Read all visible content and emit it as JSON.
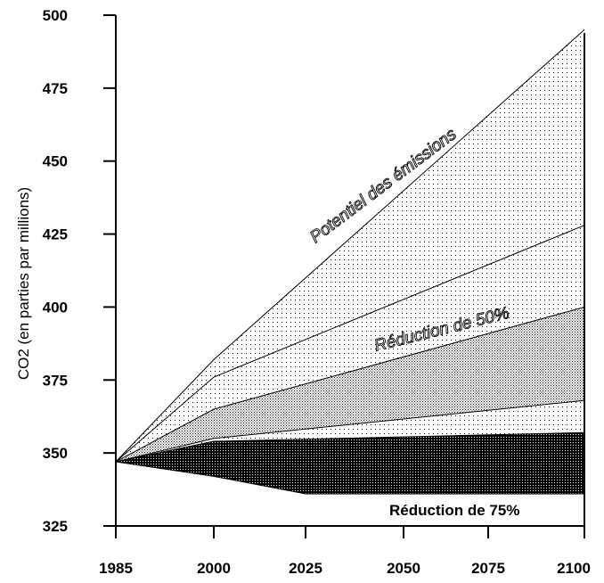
{
  "chart_data": {
    "type": "area",
    "ylabel": "CO2 (en parties par millions)",
    "xlabel": "",
    "ylim": [
      325,
      500
    ],
    "y_ticks": [
      325,
      350,
      375,
      400,
      425,
      450,
      475,
      500
    ],
    "x_tick_labels": [
      "1985",
      "2000",
      "2025",
      "2050",
      "2075",
      "2100"
    ],
    "grid": false,
    "legend": "none",
    "bands": [
      {
        "label": "Potentiel des émissions",
        "pattern": "light-dots",
        "upper": [
          [
            "1985",
            347
          ],
          [
            "2000",
            382
          ],
          [
            "2100",
            495
          ]
        ],
        "lower": [
          [
            "1985",
            347
          ],
          [
            "2000",
            376
          ],
          [
            "2100",
            428
          ]
        ]
      },
      {
        "label": "",
        "pattern": "light-dots",
        "upper": [
          [
            "1985",
            347
          ],
          [
            "2000",
            376
          ],
          [
            "2100",
            428
          ]
        ],
        "lower": [
          [
            "1985",
            347
          ],
          [
            "2000",
            365
          ],
          [
            "2100",
            400
          ]
        ]
      },
      {
        "label": "Réduction de 50%",
        "pattern": "medium-dots",
        "upper": [
          [
            "1985",
            347
          ],
          [
            "2000",
            365
          ],
          [
            "2100",
            400
          ]
        ],
        "lower": [
          [
            "1985",
            347
          ],
          [
            "2000",
            355
          ],
          [
            "2100",
            368
          ]
        ]
      },
      {
        "label": "",
        "pattern": "light-dots",
        "upper": [
          [
            "1985",
            347
          ],
          [
            "2000",
            355
          ],
          [
            "2100",
            368
          ]
        ],
        "lower": [
          [
            "1985",
            347
          ],
          [
            "2000",
            354
          ],
          [
            "2100",
            357
          ]
        ]
      },
      {
        "label": "Réduction de 75%",
        "pattern": "dark-dots",
        "upper": [
          [
            "1985",
            347
          ],
          [
            "2000",
            354
          ],
          [
            "2100",
            357
          ]
        ],
        "lower": [
          [
            "1985",
            347
          ],
          [
            "2000",
            342
          ],
          [
            "2025",
            336
          ],
          [
            "2100",
            336
          ]
        ]
      }
    ],
    "colors": {
      "line": "#000000",
      "background": "#ffffff"
    }
  }
}
